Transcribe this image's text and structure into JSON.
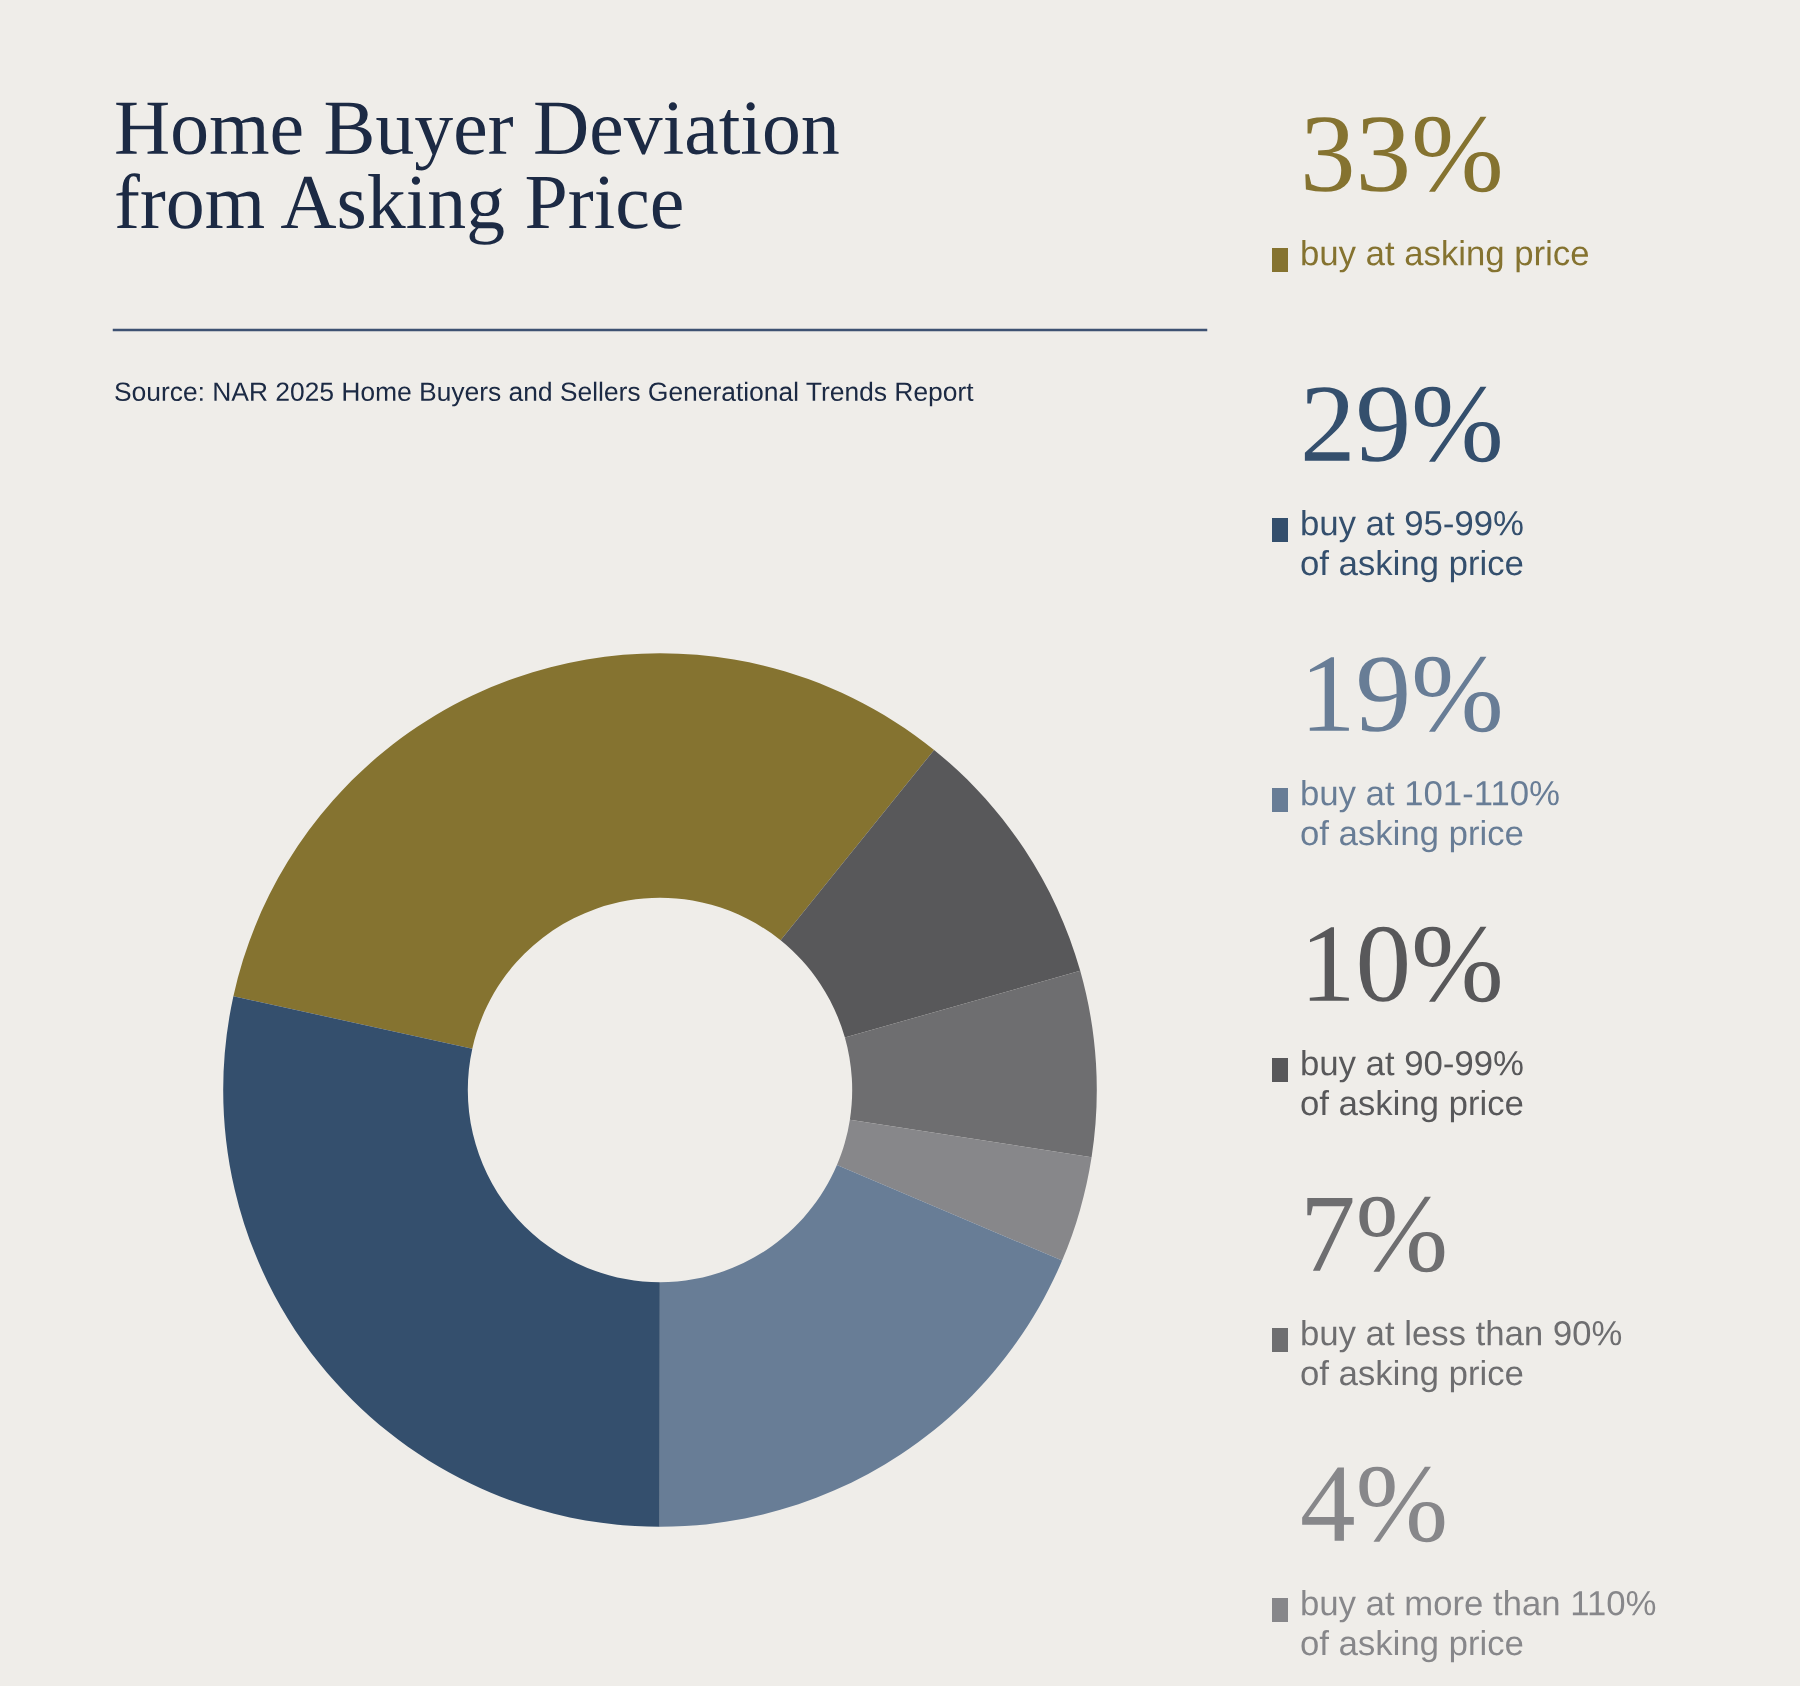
{
  "chart_data": {
    "type": "donut",
    "title": "Home Buyer Deviation\nfrom Asking Price",
    "annotations": [
      "Source: NAR 2025 Home Buyers and Sellers Generational Trends Report"
    ],
    "categories": [
      "buy at asking price",
      "buy at 90-99%\nof asking price",
      "buy at less than 90%\nof asking price",
      "buy at more than 110%\nof asking price",
      "buy at 101-110%\nof asking price",
      "buy at 95-99%\nof asking price"
    ],
    "values": [
      33,
      10,
      7,
      4,
      19,
      29
    ],
    "value_labels": [
      "33%",
      "10%",
      "7%",
      "4%",
      "19%",
      "29%"
    ],
    "colors": [
      "#857330",
      "#58585a",
      "#6e6e70",
      "#87878a",
      "#687d96",
      "#344f6d"
    ],
    "legend": "right"
  }
}
